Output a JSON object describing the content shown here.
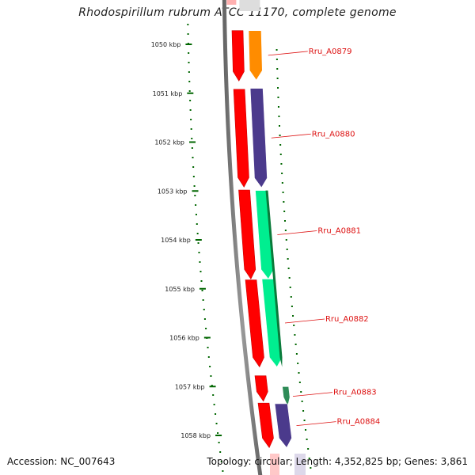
{
  "title": "Rhodospirillum rubrum ATCC 11170, complete genome",
  "ticks": [
    {
      "label": "1050 kbp",
      "kbp": 1050
    },
    {
      "label": "1051 kbp",
      "kbp": 1051
    },
    {
      "label": "1052 kbp",
      "kbp": 1052
    },
    {
      "label": "1053 kbp",
      "kbp": 1053
    },
    {
      "label": "1054 kbp",
      "kbp": 1054
    },
    {
      "label": "1055 kbp",
      "kbp": 1055
    },
    {
      "label": "1056 kbp",
      "kbp": 1056
    },
    {
      "label": "1057 kbp",
      "kbp": 1057
    },
    {
      "label": "1058 kbp",
      "kbp": 1058
    }
  ],
  "genes": [
    {
      "name": "Rru_A0879",
      "start_kbp": 1049.72,
      "end_kbp": 1050.73,
      "color": "#ff8c00"
    },
    {
      "name": "Rru_A0880",
      "start_kbp": 1050.9,
      "end_kbp": 1052.93,
      "color": "#4b3a8c"
    },
    {
      "name": "Rru_A0881",
      "start_kbp": 1052.99,
      "end_kbp": 1054.8,
      "color": "#00ee90"
    },
    {
      "name": "Rru_A0882",
      "start_kbp": 1054.8,
      "end_kbp": 1056.6,
      "color": "#00ee90"
    },
    {
      "name": "Rru_A0883",
      "start_kbp": 1057.0,
      "end_kbp": 1057.4,
      "color": "#2e8b57"
    },
    {
      "name": "Rru_A0884",
      "start_kbp": 1057.35,
      "end_kbp": 1058.25,
      "color": "#4b3a8c"
    }
  ],
  "cds_segments": [
    {
      "start_kbp": 1049.72,
      "end_kbp": 1050.75
    },
    {
      "start_kbp": 1050.92,
      "end_kbp": 1052.92
    },
    {
      "start_kbp": 1052.98,
      "end_kbp": 1054.8
    },
    {
      "start_kbp": 1054.82,
      "end_kbp": 1056.6
    },
    {
      "start_kbp": 1056.78,
      "end_kbp": 1057.3
    },
    {
      "start_kbp": 1057.34,
      "end_kbp": 1058.25
    }
  ],
  "colors": {
    "backbone": "#777777",
    "cds": "#ff0000",
    "tick": "#006600",
    "label": "#dd1111"
  },
  "footer": {
    "accession": "Accession: NC_007643",
    "topology": "Topology: circular; Length: 4,352,825 bp; Genes: 3,861"
  }
}
